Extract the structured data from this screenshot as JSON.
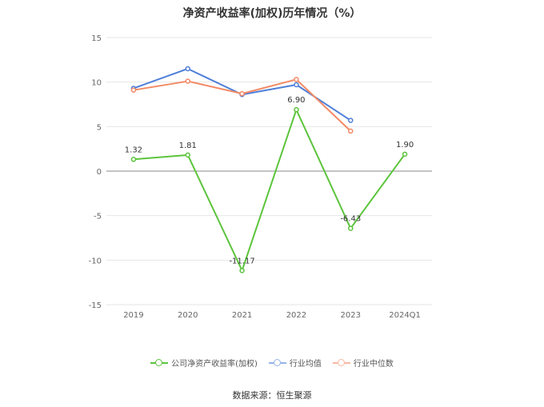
{
  "title": "净资产收益率(加权)历年情况（%）",
  "source": "数据来源：恒生聚源",
  "chart_data": {
    "type": "line",
    "categories": [
      "2019",
      "2020",
      "2021",
      "2022",
      "2023",
      "2024Q1"
    ],
    "ylim": [
      -15,
      15
    ],
    "yticks": [
      15,
      10,
      5,
      0,
      -5,
      -10,
      -15
    ],
    "grid": true,
    "legend_position": "bottom",
    "series": [
      {
        "name": "公司净资产收益率(加权)",
        "color": "#5cc43c",
        "values": [
          1.32,
          1.81,
          -11.17,
          6.9,
          -6.43,
          1.9
        ],
        "labels": [
          "1.32",
          "1.81",
          "-11.17",
          "6.90",
          "-6.43",
          "1.90"
        ]
      },
      {
        "name": "行业均值",
        "color": "#4f7fd8",
        "values": [
          9.3,
          11.5,
          8.6,
          9.7,
          5.7,
          null
        ]
      },
      {
        "name": "行业中位数",
        "color": "#f28a65",
        "values": [
          9.1,
          10.1,
          8.7,
          10.3,
          4.5,
          null
        ]
      }
    ]
  }
}
